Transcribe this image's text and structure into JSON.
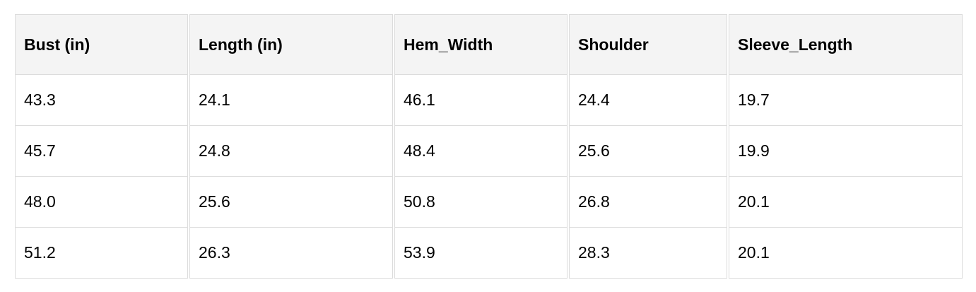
{
  "table": {
    "headers": [
      "Bust (in)",
      "Length (in)",
      "Hem_Width",
      "Shoulder",
      "Sleeve_Length"
    ],
    "rows": [
      [
        "43.3",
        "24.1",
        "46.1",
        "24.4",
        "19.7"
      ],
      [
        "45.7",
        "24.8",
        "48.4",
        "25.6",
        "19.9"
      ],
      [
        "48.0",
        "25.6",
        "50.8",
        "26.8",
        "20.1"
      ],
      [
        "51.2",
        "26.3",
        "53.9",
        "28.3",
        "20.1"
      ]
    ]
  }
}
